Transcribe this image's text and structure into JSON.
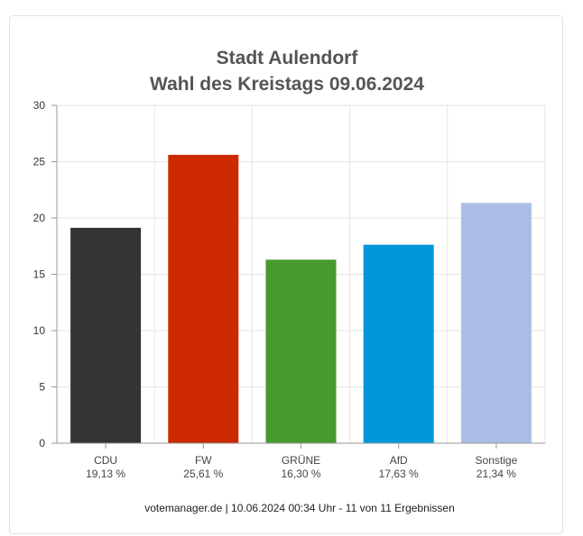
{
  "chart_data": {
    "type": "bar",
    "title": "Stadt Aulendorf",
    "subtitle": "Wahl des Kreistags 09.06.2024",
    "categories": [
      "CDU",
      "FW",
      "GRÜNE",
      "AfD",
      "Sonstige"
    ],
    "value_labels": [
      "19,13 %",
      "25,61 %",
      "16,30 %",
      "17,63 %",
      "21,34 %"
    ],
    "values": [
      19.13,
      25.61,
      16.3,
      17.63,
      21.34
    ],
    "colors": [
      "#333331",
      "#cc2900",
      "#489a2c",
      "#0096db",
      "#aabde5"
    ],
    "ylim": [
      0,
      30
    ],
    "yticks": [
      "0",
      "5",
      "10",
      "15",
      "20",
      "25",
      "30"
    ],
    "grid": true,
    "footer": "votemanager.de | 10.06.2024 00:34 Uhr - 11 von 11 Ergebnissen"
  }
}
